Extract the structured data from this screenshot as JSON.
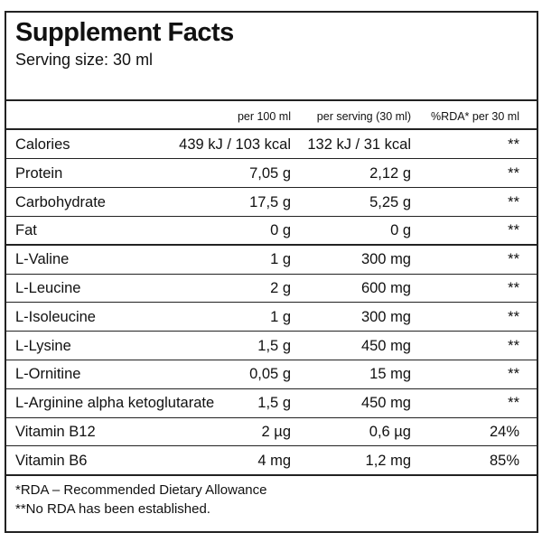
{
  "header": {
    "title": "Supplement Facts",
    "serving_size": "Serving size: 30 ml"
  },
  "table": {
    "columns": [
      "per 100 ml",
      "per serving (30 ml)",
      "%RDA* per 30 ml"
    ],
    "rows": [
      [
        "Calories",
        "439 kJ / 103 kcal",
        "132 kJ / 31 kcal",
        "**"
      ],
      [
        "Protein",
        "7,05 g",
        "2,12 g",
        "**"
      ],
      [
        "Carbohydrate",
        "17,5 g",
        "5,25 g",
        "**"
      ],
      [
        "Fat",
        "0 g",
        "0 g",
        "**"
      ],
      [
        "L-Valine",
        "1 g",
        "300 mg",
        "**"
      ],
      [
        "L-Leucine",
        "2 g",
        "600 mg",
        "**"
      ],
      [
        "L-Isoleucine",
        "1 g",
        "300 mg",
        "**"
      ],
      [
        "L-Lysine",
        "1,5 g",
        "450 mg",
        "**"
      ],
      [
        "L-Ornitine",
        "0,05 g",
        "15 mg",
        "**"
      ],
      [
        "L-Arginine alpha ketoglutarate",
        "1,5 g",
        "450 mg",
        "**"
      ],
      [
        "Vitamin B12",
        "2 µg",
        "0,6 µg",
        "24%"
      ],
      [
        "Vitamin B6",
        "4 mg",
        "1,2 mg",
        "85%"
      ]
    ]
  },
  "footnotes": [
    "*RDA – Recommended Dietary Allowance",
    "**No RDA has been established."
  ]
}
